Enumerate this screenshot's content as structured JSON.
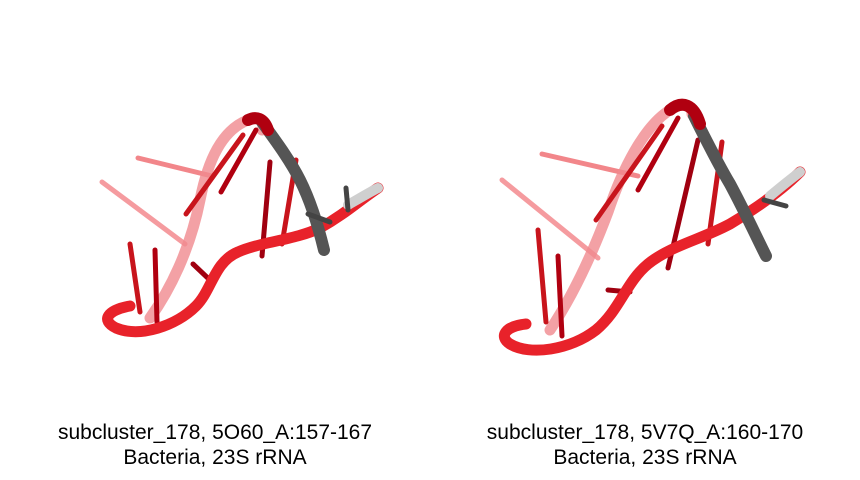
{
  "colors": {
    "strand": "#e8222a",
    "strand_dark": "#b00010",
    "base": "#c8141c",
    "gray": "#555555",
    "light_gray": "#d0d0d0",
    "background": "#ffffff"
  },
  "panels": [
    {
      "caption_line1": "subcluster_178, 5O60_A:157-167",
      "caption_line2": "Bacteria, 23S rRNA"
    },
    {
      "caption_line1": "subcluster_178, 5V7Q_A:160-170",
      "caption_line2": "Bacteria, 23S rRNA"
    }
  ]
}
